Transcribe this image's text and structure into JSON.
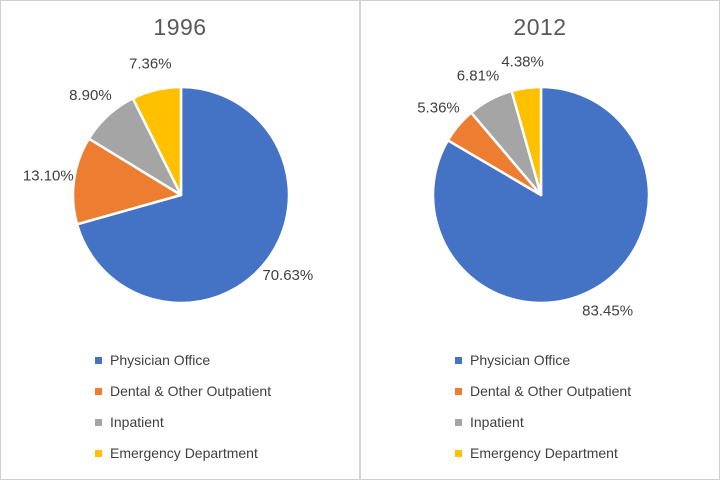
{
  "chart_data": [
    {
      "type": "pie",
      "title": "1996",
      "categories": [
        "Physician Office",
        "Dental & Other Outpatient",
        "Inpatient",
        "Emergency Department"
      ],
      "values": [
        70.63,
        13.1,
        8.9,
        7.36
      ],
      "value_labels": [
        "70.63%",
        "13.10%",
        "8.90%",
        "7.36%"
      ],
      "colors": [
        "#4472C4",
        "#ED7D31",
        "#A5A5A5",
        "#FFC000"
      ],
      "start_angle_deg": 0,
      "direction": "clockwise",
      "legend_position": "bottom-left",
      "legend_entries": [
        "Physician Office",
        "Dental & Other Outpatient",
        "Inpatient",
        "Emergency Department"
      ]
    },
    {
      "type": "pie",
      "title": "2012",
      "categories": [
        "Physician Office",
        "Dental & Other Outpatient",
        "Inpatient",
        "Emergency Department"
      ],
      "values": [
        83.45,
        5.36,
        6.81,
        4.38
      ],
      "value_labels": [
        "83.45%",
        "5.36%",
        "6.81%",
        "4.38%"
      ],
      "colors": [
        "#4472C4",
        "#ED7D31",
        "#A5A5A5",
        "#FFC000"
      ],
      "start_angle_deg": 0,
      "direction": "clockwise",
      "legend_position": "bottom-left",
      "legend_entries": [
        "Physician Office",
        "Dental & Other Outpatient",
        "Inpatient",
        "Emergency Department"
      ]
    }
  ],
  "styles": {
    "slice_border_color": "#FFFFFF",
    "title_color": "#595959",
    "label_color": "#404040",
    "legend_text_color": "#404040",
    "divider_color": "#D6D6D6",
    "background_color": "#FFFFFF"
  }
}
